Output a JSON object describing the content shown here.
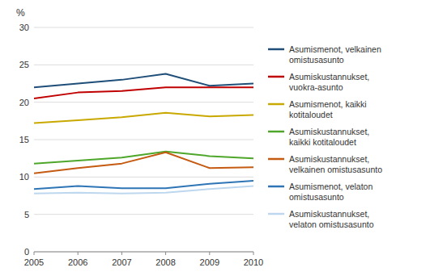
{
  "chart_data": {
    "type": "line",
    "ylabel": "%",
    "x": [
      2005,
      2006,
      2007,
      2008,
      2009,
      2010
    ],
    "xlim": [
      2005,
      2010
    ],
    "xticks": [
      2005,
      2006,
      2007,
      2008,
      2009,
      2010
    ],
    "ylim": [
      0,
      30
    ],
    "yticks": [
      0,
      5,
      10,
      15,
      20,
      25,
      30
    ],
    "grid": true,
    "legend": "right",
    "series": [
      {
        "name": "Asumismenot, velkainen\nomistusasunto",
        "color": "#1F4E79",
        "values": [
          22.0,
          22.5,
          23.0,
          23.8,
          22.2,
          22.5
        ]
      },
      {
        "name": "Asumiskustannukset,\nvuokra-asunto",
        "color": "#C00000",
        "values": [
          20.5,
          21.3,
          21.5,
          22.0,
          22.0,
          22.0
        ]
      },
      {
        "name": "Asumismenot, kaikki\nkotitaloudet",
        "color": "#C9A800",
        "values": [
          17.2,
          17.6,
          18.0,
          18.6,
          18.1,
          18.3
        ]
      },
      {
        "name": "Asumiskustannukset,\nkaikki kotitaloudet",
        "color": "#4EA72A",
        "values": [
          11.8,
          12.2,
          12.6,
          13.4,
          12.8,
          12.5
        ]
      },
      {
        "name": "Asumiskustannukset,\nvelkainen omistusasunto",
        "color": "#C55A11",
        "values": [
          10.5,
          11.2,
          11.8,
          13.3,
          11.2,
          11.3
        ]
      },
      {
        "name": "Asumismenot, velaton\nomistusasunto",
        "color": "#2E75B6",
        "values": [
          8.4,
          8.8,
          8.5,
          8.5,
          9.1,
          9.5
        ]
      },
      {
        "name": "Asumiskustannukset,\nvelaton omistusasunto",
        "color": "#BDD7EE",
        "values": [
          7.8,
          7.9,
          7.8,
          7.9,
          8.4,
          8.8
        ]
      }
    ]
  }
}
